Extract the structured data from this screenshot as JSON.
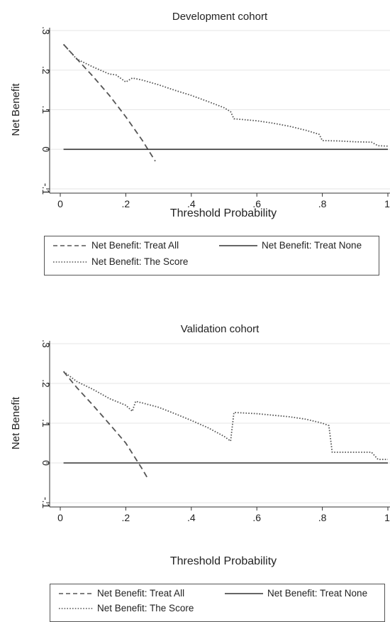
{
  "chart_data": [
    {
      "type": "line",
      "title": "Development cohort",
      "xlabel": "Threshold Probability",
      "ylabel": "Net Benefit",
      "xlim": [
        0,
        1
      ],
      "ylim": [
        -0.1,
        0.3
      ],
      "x_ticks": [
        "0",
        ".2",
        ".4",
        ".6",
        ".8",
        "1"
      ],
      "y_ticks": [
        "-.1",
        "0",
        ".1",
        ".2",
        ".3"
      ],
      "grid": "horizontal",
      "legend_position": "bottom",
      "series": [
        {
          "name": "Net Benefit: Treat All",
          "style": "dashed",
          "x": [
            0.01,
            0.05,
            0.1,
            0.15,
            0.2,
            0.25,
            0.29
          ],
          "y": [
            0.265,
            0.229,
            0.184,
            0.136,
            0.082,
            0.023,
            -0.03
          ]
        },
        {
          "name": "Net Benefit: Treat None",
          "style": "solid",
          "x": [
            0.01,
            1.0
          ],
          "y": [
            0,
            0
          ]
        },
        {
          "name": "Net Benefit: The Score",
          "style": "dotted",
          "x": [
            0.01,
            0.05,
            0.1,
            0.15,
            0.17,
            0.2,
            0.22,
            0.25,
            0.3,
            0.35,
            0.4,
            0.45,
            0.5,
            0.52,
            0.53,
            0.6,
            0.65,
            0.7,
            0.75,
            0.79,
            0.8,
            0.85,
            0.9,
            0.95,
            0.97,
            1.0
          ],
          "y": [
            0.265,
            0.228,
            0.208,
            0.19,
            0.188,
            0.17,
            0.18,
            0.175,
            0.163,
            0.149,
            0.136,
            0.121,
            0.105,
            0.095,
            0.077,
            0.072,
            0.066,
            0.058,
            0.048,
            0.038,
            0.022,
            0.021,
            0.019,
            0.018,
            0.009,
            0.008
          ]
        }
      ]
    },
    {
      "type": "line",
      "title": "Validation cohort",
      "xlabel": "Threshold Probability",
      "ylabel": "Net Benefit",
      "xlim": [
        0,
        1
      ],
      "ylim": [
        -0.1,
        0.3
      ],
      "x_ticks": [
        "0",
        ".2",
        ".4",
        ".6",
        ".8",
        "1"
      ],
      "y_ticks": [
        "-.1",
        "0",
        ".1",
        ".2",
        ".3"
      ],
      "grid": "horizontal",
      "legend_position": "bottom",
      "series": [
        {
          "name": "Net Benefit: Treat All",
          "style": "dashed",
          "x": [
            0.01,
            0.05,
            0.1,
            0.15,
            0.2,
            0.25,
            0.27
          ],
          "y": [
            0.23,
            0.19,
            0.145,
            0.098,
            0.05,
            -0.015,
            -0.043
          ]
        },
        {
          "name": "Net Benefit: Treat None",
          "style": "solid",
          "x": [
            0.01,
            1.0
          ],
          "y": [
            0,
            0
          ]
        },
        {
          "name": "Net Benefit: The Score",
          "style": "dotted",
          "x": [
            0.01,
            0.05,
            0.1,
            0.15,
            0.2,
            0.22,
            0.23,
            0.25,
            0.3,
            0.35,
            0.4,
            0.45,
            0.5,
            0.52,
            0.53,
            0.6,
            0.65,
            0.7,
            0.75,
            0.8,
            0.82,
            0.83,
            0.9,
            0.95,
            0.97,
            1.0
          ],
          "y": [
            0.23,
            0.205,
            0.185,
            0.162,
            0.145,
            0.13,
            0.155,
            0.151,
            0.14,
            0.124,
            0.107,
            0.089,
            0.067,
            0.055,
            0.127,
            0.124,
            0.12,
            0.116,
            0.11,
            0.1,
            0.094,
            0.027,
            0.027,
            0.027,
            0.009,
            0.009
          ]
        }
      ]
    }
  ]
}
